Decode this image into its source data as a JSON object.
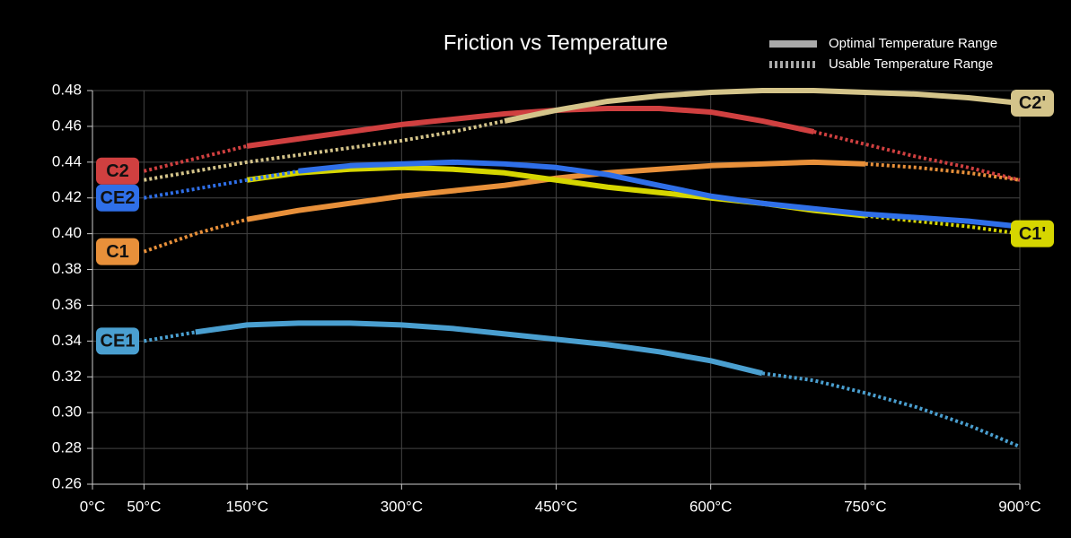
{
  "chart_data": {
    "type": "line",
    "title": "Friction vs Temperature",
    "x": [
      50,
      100,
      150,
      200,
      250,
      300,
      350,
      400,
      450,
      500,
      550,
      600,
      650,
      700,
      750,
      800,
      850,
      900
    ],
    "xlim": [
      0,
      900
    ],
    "xticks": [
      {
        "value": 0,
        "label": "0°C"
      },
      {
        "value": 50,
        "label": "50°C"
      },
      {
        "value": 150,
        "label": "150°C"
      },
      {
        "value": 300,
        "label": "300°C"
      },
      {
        "value": 450,
        "label": "450°C"
      },
      {
        "value": 600,
        "label": "600°C"
      },
      {
        "value": 750,
        "label": "750°C"
      },
      {
        "value": 900,
        "label": "900°C"
      }
    ],
    "ylim": [
      0.26,
      0.48
    ],
    "yticks": [
      {
        "value": 0.26,
        "label": "0.26"
      },
      0.28,
      {
        "value": 0.3,
        "label": "0.30"
      },
      0.32,
      0.34,
      0.36,
      0.38,
      {
        "value": 0.4,
        "label": "0.40"
      },
      0.42,
      0.44,
      0.46,
      0.48
    ],
    "grid": true,
    "legend": [
      {
        "label": "Optimal Temperature Range",
        "style": "solid"
      },
      {
        "label": "Usable Temperature Range",
        "style": "dotted"
      }
    ],
    "series": [
      {
        "name": "CE1",
        "color": "#4a9fd0",
        "label_side": "left",
        "optimal_range": [
          100,
          650
        ],
        "values": [
          0.34,
          0.345,
          0.349,
          0.35,
          0.35,
          0.349,
          0.347,
          0.344,
          0.341,
          0.338,
          0.334,
          0.329,
          0.322,
          0.318,
          0.311,
          0.303,
          0.293,
          0.281
        ]
      },
      {
        "name": "C1",
        "color": "#e8903a",
        "label_side": "left",
        "optimal_range": [
          150,
          750
        ],
        "values": [
          0.39,
          0.4,
          0.408,
          0.413,
          0.417,
          0.421,
          0.424,
          0.427,
          0.431,
          0.434,
          0.436,
          0.438,
          0.439,
          0.44,
          0.439,
          0.437,
          0.434,
          0.43
        ]
      },
      {
        "name": "C1'",
        "color": "#d6d600",
        "label_side": "right",
        "optimal_range": [
          150,
          750
        ],
        "values": [
          null,
          null,
          0.43,
          0.434,
          0.436,
          0.437,
          0.436,
          0.434,
          0.43,
          0.426,
          0.423,
          0.42,
          0.417,
          0.413,
          0.41,
          0.407,
          0.404,
          0.4
        ]
      },
      {
        "name": "CE2",
        "color": "#2f6fe8",
        "label_side": "left",
        "optimal_range": [
          200,
          900
        ],
        "values": [
          0.42,
          0.425,
          0.43,
          0.435,
          0.438,
          0.439,
          0.44,
          0.439,
          0.437,
          0.433,
          0.427,
          0.421,
          0.417,
          0.414,
          0.411,
          0.409,
          0.407,
          0.404
        ]
      },
      {
        "name": "C2",
        "color": "#d04040",
        "label_side": "left",
        "optimal_range": [
          150,
          700
        ],
        "values": [
          0.435,
          0.442,
          0.449,
          0.453,
          0.457,
          0.461,
          0.464,
          0.467,
          0.469,
          0.47,
          0.47,
          0.468,
          0.463,
          0.457,
          0.45,
          0.443,
          0.437,
          0.43
        ]
      },
      {
        "name": "C2'",
        "color": "#d4c48a",
        "label_side": "right",
        "optimal_range": [
          400,
          900
        ],
        "values": [
          0.43,
          0.435,
          0.44,
          0.444,
          0.448,
          0.452,
          0.457,
          0.463,
          0.469,
          0.474,
          0.477,
          0.479,
          0.48,
          0.48,
          0.479,
          0.478,
          0.476,
          0.473
        ]
      }
    ]
  }
}
